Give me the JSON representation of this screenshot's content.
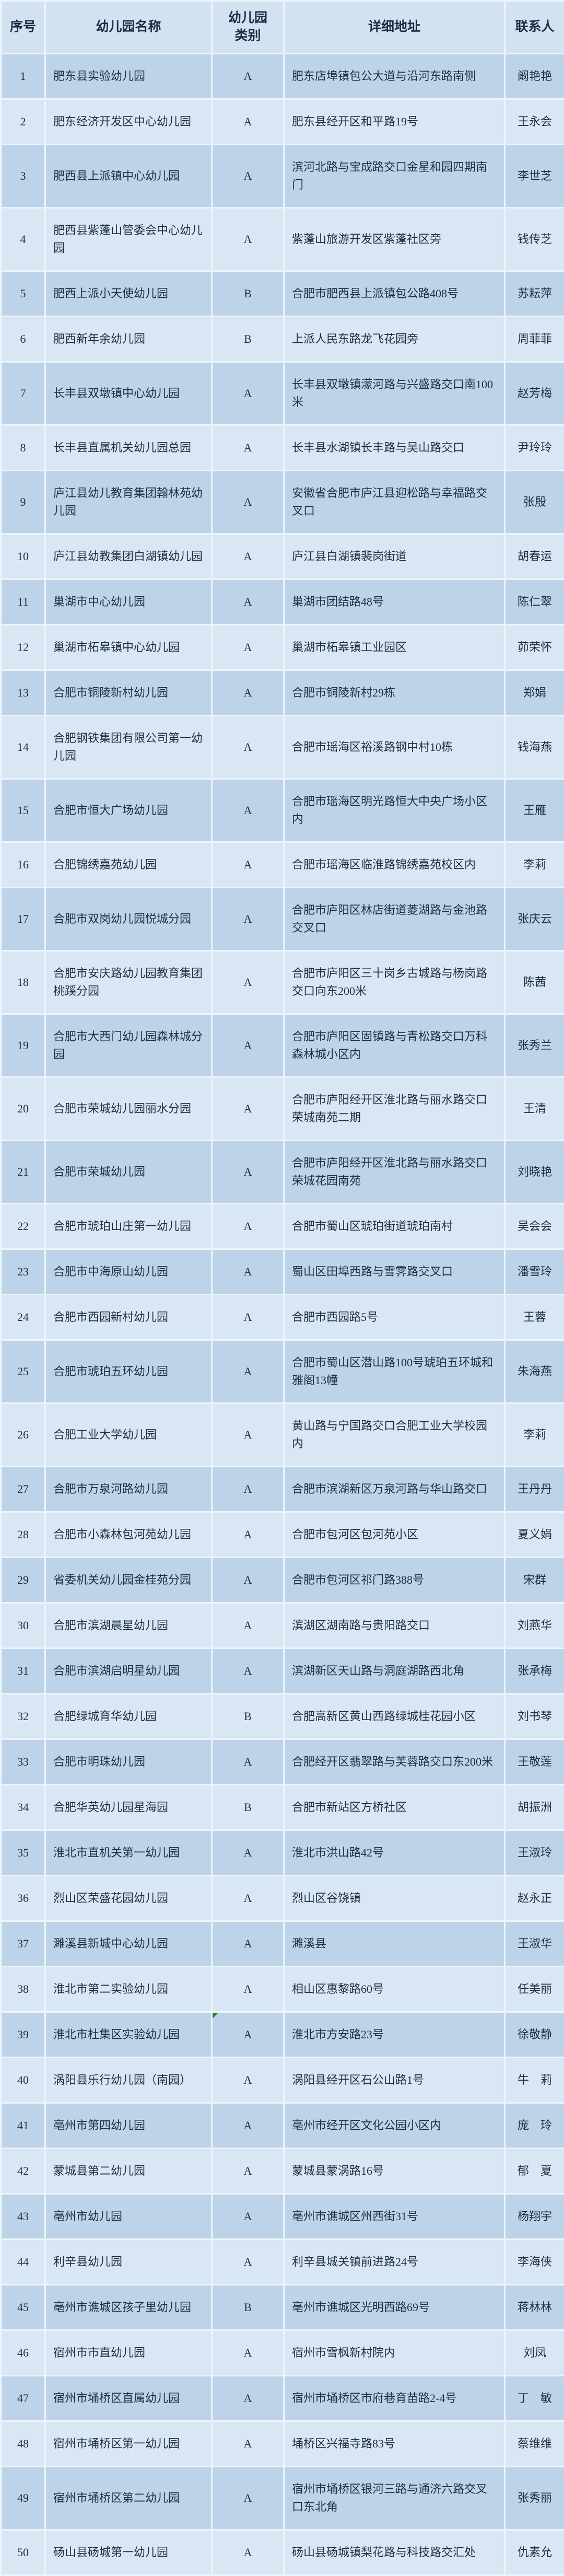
{
  "colors": {
    "header_bg": "#d3e2f1",
    "row_odd_bg": "#bdd3e9",
    "row_even_bg": "#d9e7f4",
    "grid_line": "#eef4fa",
    "text": "#1e2c45",
    "note_marker_green": "#2e7d32"
  },
  "table": {
    "headers": {
      "index": "序号",
      "name": "幼儿园名称",
      "category": "幼儿园\n类别",
      "address": "详细地址",
      "contact": "联系人"
    },
    "rows": [
      {
        "index": "1",
        "name": "肥东县实验幼儿园",
        "category": "A",
        "address": "肥东店埠镇包公大道与沿河东路南侧",
        "contact": "阚艳艳"
      },
      {
        "index": "2",
        "name": "肥东经济开发区中心幼儿园",
        "category": "A",
        "address": "肥东县经开区和平路19号",
        "contact": "王永会"
      },
      {
        "index": "3",
        "name": "肥西县上派镇中心幼儿园",
        "category": "A",
        "address": "滨河北路与宝成路交口金星和园四期南门",
        "contact": "李世芝"
      },
      {
        "index": "4",
        "name": "肥西县紫蓬山管委会中心幼儿园",
        "category": "A",
        "address": "紫蓬山旅游开发区紫蓬社区旁",
        "contact": "钱传芝"
      },
      {
        "index": "5",
        "name": "肥西上派小天使幼儿园",
        "category": "B",
        "address": "合肥市肥西县上派镇包公路408号",
        "contact": "苏耘萍"
      },
      {
        "index": "6",
        "name": "肥西新年余幼儿园",
        "category": "B",
        "address": "上派人民东路龙飞花园旁",
        "contact": "周菲菲"
      },
      {
        "index": "7",
        "name": "长丰县双墩镇中心幼儿园",
        "category": "A",
        "address": "长丰县双墩镇濛河路与兴盛路交口南100米",
        "contact": "赵芳梅"
      },
      {
        "index": "8",
        "name": "长丰县直属机关幼儿园总园",
        "category": "A",
        "address": "长丰县水湖镇长丰路与吴山路交口",
        "contact": "尹玲玲"
      },
      {
        "index": "9",
        "name": "庐江县幼儿教育集团翰林苑幼儿园",
        "category": "A",
        "address": "安徽省合肥市庐江县迎松路与幸福路交叉口",
        "contact": "张殷"
      },
      {
        "index": "10",
        "name": "庐江县幼教集团白湖镇幼儿园",
        "category": "A",
        "address": "庐江县白湖镇裴岗街道",
        "contact": "胡春运"
      },
      {
        "index": "11",
        "name": "巢湖市中心幼儿园",
        "category": "A",
        "address": "巢湖市团结路48号",
        "contact": "陈仁翠"
      },
      {
        "index": "12",
        "name": "巢湖市柘皋镇中心幼儿园",
        "category": "A",
        "address": "巢湖市柘皋镇工业园区",
        "contact": "茆荣怀"
      },
      {
        "index": "13",
        "name": "合肥市铜陵新村幼儿园",
        "category": "A",
        "address": "合肥市铜陵新村29栋",
        "contact": "郑娟"
      },
      {
        "index": "14",
        "name": "合肥钢铁集团有限公司第一幼儿园",
        "category": "A",
        "address": "合肥市瑶海区裕溪路钢中村10栋",
        "contact": "钱海燕"
      },
      {
        "index": "15",
        "name": "合肥市恒大广场幼儿园",
        "category": "A",
        "address": "合肥市瑶海区明光路恒大中央广场小区内",
        "contact": "王雁"
      },
      {
        "index": "16",
        "name": "合肥锦绣嘉苑幼儿园",
        "category": "A",
        "address": "合肥市瑶海区临淮路锦绣嘉苑校区内",
        "contact": "李莉"
      },
      {
        "index": "17",
        "name": "合肥市双岗幼儿园悦城分园",
        "category": "A",
        "address": "合肥市庐阳区林店街道菱湖路与金池路交叉口",
        "contact": "张庆云"
      },
      {
        "index": "18",
        "name": "合肥市安庆路幼儿园教育集团桃蹊分园",
        "category": "A",
        "address": "合肥市庐阳区三十岗乡古城路与杨岗路交口向东200米",
        "contact": "陈茜"
      },
      {
        "index": "19",
        "name": "合肥市大西门幼儿园森林城分园",
        "category": "A",
        "address": "合肥市庐阳区固镇路与青松路交口万科森林城小区内",
        "contact": "张秀兰"
      },
      {
        "index": "20",
        "name": "合肥市荣城幼儿园丽水分园",
        "category": "A",
        "address": "合肥市庐阳经开区淮北路与丽水路交口荣城南苑二期",
        "contact": "王清"
      },
      {
        "index": "21",
        "name": "合肥市荣城幼儿园",
        "category": "A",
        "address": "合肥市庐阳经开区淮北路与丽水路交口荣城花园南苑",
        "contact": "刘晓艳"
      },
      {
        "index": "22",
        "name": "合肥市琥珀山庄第一幼儿园",
        "category": "A",
        "address": "合肥市蜀山区琥珀街道琥珀南村",
        "contact": "吴会会"
      },
      {
        "index": "23",
        "name": "合肥市中海原山幼儿园",
        "category": "A",
        "address": "蜀山区田埠西路与雪霁路交叉口",
        "contact": "潘雪玲"
      },
      {
        "index": "24",
        "name": "合肥市西园新村幼儿园",
        "category": "A",
        "address": "合肥市西园路5号",
        "contact": "王蓉"
      },
      {
        "index": "25",
        "name": "合肥市琥珀五环幼儿园",
        "category": "A",
        "address": "合肥市蜀山区潜山路100号琥珀五环城和雅阁13幢",
        "contact": "朱海燕"
      },
      {
        "index": "26",
        "name": "合肥工业大学幼儿园",
        "category": "A",
        "address": "黄山路与宁国路交口合肥工业大学校园内",
        "contact": "李莉"
      },
      {
        "index": "27",
        "name": "合肥市万泉河路幼儿园",
        "category": "A",
        "address": "合肥市滨湖新区万泉河路与华山路交口",
        "contact": "王丹丹"
      },
      {
        "index": "28",
        "name": "合肥市小森林包河苑幼儿园",
        "category": "A",
        "address": "合肥市包河区包河苑小区",
        "contact": "夏义娟"
      },
      {
        "index": "29",
        "name": "省委机关幼儿园金桂苑分园",
        "category": "A",
        "address": "合肥市包河区祁门路388号",
        "contact": "宋群"
      },
      {
        "index": "30",
        "name": "合肥市滨湖晨星幼儿园",
        "category": "A",
        "address": "滨湖区湖南路与贵阳路交口",
        "contact": "刘燕华"
      },
      {
        "index": "31",
        "name": "合肥市滨湖启明星幼儿园",
        "category": "A",
        "address": "滨湖新区天山路与洞庭湖路西北角",
        "contact": "张承梅"
      },
      {
        "index": "32",
        "name": "合肥绿城育华幼儿园",
        "category": "B",
        "address": "合肥高新区黄山西路绿城桂花园小区",
        "contact": "刘书琴"
      },
      {
        "index": "33",
        "name": "合肥市明珠幼儿园",
        "category": "A",
        "address": "合肥经开区翡翠路与芙蓉路交口东200米",
        "contact": "王敬莲"
      },
      {
        "index": "34",
        "name": "合肥华英幼儿园星海园",
        "category": "B",
        "address": "合肥市新站区方桥社区",
        "contact": "胡振洲"
      },
      {
        "index": "35",
        "name": "淮北市直机关第一幼儿园",
        "category": "A",
        "address": "淮北市洪山路42号",
        "contact": "王淑玲"
      },
      {
        "index": "36",
        "name": "烈山区荣盛花园幼儿园",
        "category": "A",
        "address": "烈山区谷饶镇",
        "contact": "赵永正"
      },
      {
        "index": "37",
        "name": "濉溪县新城中心幼儿园",
        "category": "A",
        "address": "濉溪县",
        "contact": "王淑华"
      },
      {
        "index": "38",
        "name": "淮北市第二实验幼儿园",
        "category": "A",
        "address": "相山区惠黎路60号",
        "contact": "任美丽"
      },
      {
        "index": "39",
        "name": "淮北市杜集区实验幼儿园",
        "category": "A",
        "address": "淮北市方安路23号",
        "contact": "徐敬静",
        "marker": true
      },
      {
        "index": "40",
        "name": "涡阳县乐行幼儿园（南园）",
        "category": "A",
        "address": "涡阳县经开区石公山路1号",
        "contact": "牛　莉"
      },
      {
        "index": "41",
        "name": "亳州市第四幼儿园",
        "category": "A",
        "address": "亳州市经开区文化公园小区内",
        "contact": "庞　玲"
      },
      {
        "index": "42",
        "name": "蒙城县第二幼儿园",
        "category": "A",
        "address": "蒙城县蒙涡路16号",
        "contact": "郁　夏"
      },
      {
        "index": "43",
        "name": "亳州市幼儿园",
        "category": "A",
        "address": "亳州市谯城区州西街31号",
        "contact": "杨翔宇"
      },
      {
        "index": "44",
        "name": "利辛县幼儿园",
        "category": "A",
        "address": "利辛县城关镇前进路24号",
        "contact": "李海侠"
      },
      {
        "index": "45",
        "name": "亳州市谯城区孩子里幼儿园",
        "category": "B",
        "address": "亳州市谯城区光明西路69号",
        "contact": "蒋林林"
      },
      {
        "index": "46",
        "name": "宿州市市直幼儿园",
        "category": "A",
        "address": "宿州市雪枫新村院内",
        "contact": "刘凤"
      },
      {
        "index": "47",
        "name": "宿州市埇桥区直属幼儿园",
        "category": "A",
        "address": "宿州市埇桥区市府巷育苗路2-4号",
        "contact": "丁　敏"
      },
      {
        "index": "48",
        "name": "宿州市埇桥区第一幼儿园",
        "category": "A",
        "address": "埇桥区兴福寺路83号",
        "contact": "蔡维维"
      },
      {
        "index": "49",
        "name": "宿州市埇桥区第二幼儿园",
        "category": "A",
        "address": "宿州市埇桥区银河三路与通济六路交叉口东北角",
        "contact": "张秀丽"
      },
      {
        "index": "50",
        "name": "砀山县砀城第一幼儿园",
        "category": "A",
        "address": "砀山县砀城镇梨花路与科技路交汇处",
        "contact": "仇素允"
      }
    ]
  }
}
